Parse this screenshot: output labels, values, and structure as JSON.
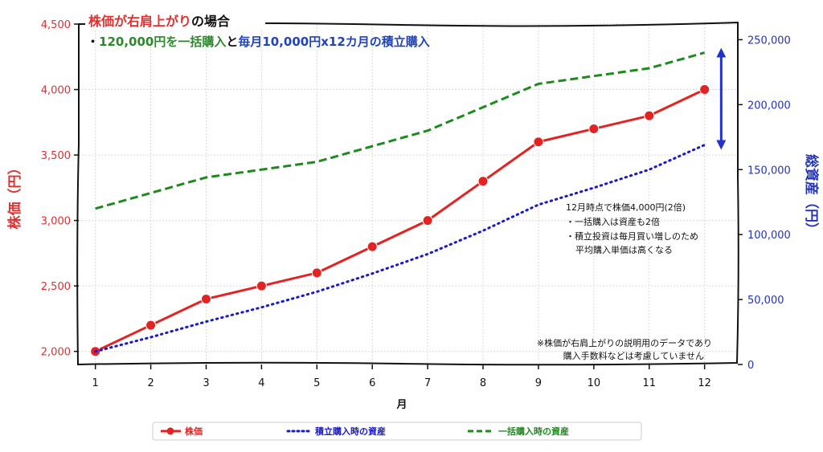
{
  "chart_data": {
    "type": "line",
    "title": {
      "part1": "株価が右肩上がり",
      "part2": "の場合"
    },
    "subtitle": {
      "bullet": "・",
      "part1": "120,000円を一括購入",
      "part2": "と",
      "part3": "毎月10,000円x12カ月の積立購入"
    },
    "xlabel": "月",
    "ylabel_left": "株価（円）",
    "ylabel_right": "総資産（円）",
    "x": [
      1,
      2,
      3,
      4,
      5,
      6,
      7,
      8,
      9,
      10,
      11,
      12
    ],
    "x_tick_labels": [
      "1",
      "2",
      "3",
      "4",
      "5",
      "6",
      "7",
      "8",
      "9",
      "10",
      "11",
      "12"
    ],
    "xlim": [
      0.7,
      12.6
    ],
    "ylim_left": [
      1900,
      4500
    ],
    "ylim_right": [
      0,
      262000
    ],
    "y_ticks_left": [
      2000,
      2500,
      3000,
      3500,
      4000,
      4500
    ],
    "y_tick_labels_left": [
      "2,000",
      "2,500",
      "3,000",
      "3,500",
      "4,000",
      "4,500"
    ],
    "y_ticks_right": [
      0,
      50000,
      100000,
      150000,
      200000,
      250000
    ],
    "y_tick_labels_right": [
      "0",
      "50,000",
      "100,000",
      "150,000",
      "200,000",
      "250,000"
    ],
    "series": [
      {
        "name": "株価",
        "axis": "left",
        "style": "solid-marker",
        "color": "#e32222",
        "values": [
          2000,
          2200,
          2400,
          2500,
          2600,
          2800,
          3000,
          3300,
          3600,
          3700,
          3800,
          4000
        ]
      },
      {
        "name": "積立購入時の資産",
        "axis": "right",
        "style": "dotted",
        "color": "#1a1acc",
        "values": [
          10000,
          21000,
          33000,
          44000,
          56000,
          70000,
          85000,
          103000,
          123000,
          136000,
          150000,
          169000
        ]
      },
      {
        "name": "一括購入時の資産",
        "axis": "right",
        "style": "dashed",
        "color": "#1e8a1e",
        "values": [
          120000,
          132000,
          144000,
          150000,
          156000,
          168000,
          180000,
          198000,
          216000,
          222000,
          228000,
          240000
        ]
      }
    ],
    "annotations": {
      "main_lines": [
        "12月時点で株価4,000円(2倍)",
        "・一括購入は資産も2倍",
        "・積立投資は毎月買い増しのため",
        "平均購入単価は高くなる"
      ],
      "footnote_lines": [
        "※株価が右肩上がりの説明用のデータであり",
        "購入手数料などは考慮していません"
      ],
      "arrow": {
        "x": 12.3,
        "from_value": 169000,
        "to_value": 240000,
        "axis": "right",
        "color": "#2233cc"
      }
    },
    "grid": true,
    "legend_position": "bottom"
  }
}
